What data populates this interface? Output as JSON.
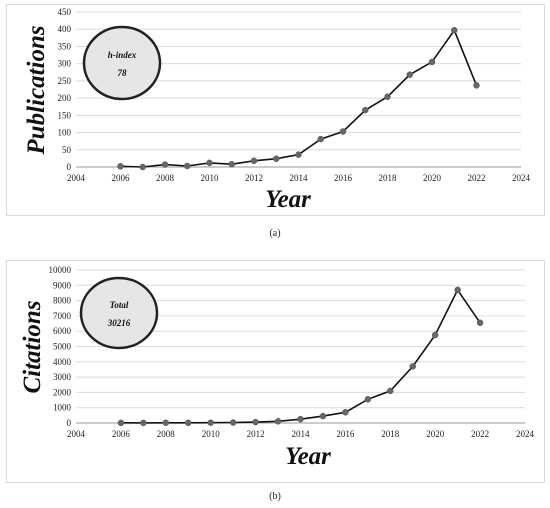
{
  "chart_data": [
    {
      "type": "line",
      "panel": "a",
      "caption": "(a)",
      "xlabel": "Year",
      "ylabel": "Publications",
      "xlim": [
        2004,
        2024
      ],
      "ylim": [
        0,
        450
      ],
      "xticks": [
        2004,
        2006,
        2008,
        2010,
        2012,
        2014,
        2016,
        2018,
        2020,
        2022,
        2024
      ],
      "yticks": [
        0,
        50,
        100,
        150,
        200,
        250,
        300,
        350,
        400,
        450
      ],
      "grid": "horizontal",
      "annotation": {
        "line1": "h-index",
        "line2": "78"
      },
      "x": [
        2006,
        2007,
        2008,
        2009,
        2010,
        2011,
        2012,
        2013,
        2014,
        2015,
        2016,
        2017,
        2018,
        2019,
        2020,
        2021,
        2022
      ],
      "y": [
        2,
        0,
        7,
        3,
        12,
        8,
        18,
        24,
        36,
        81,
        103,
        165,
        204,
        268,
        305,
        397,
        237
      ]
    },
    {
      "type": "line",
      "panel": "b",
      "caption": "(b)",
      "xlabel": "Year",
      "ylabel": "Citations",
      "xlim": [
        2004,
        2024
      ],
      "ylim": [
        0,
        10000
      ],
      "xticks": [
        2004,
        2006,
        2008,
        2010,
        2012,
        2014,
        2016,
        2018,
        2020,
        2022,
        2024
      ],
      "yticks": [
        0,
        1000,
        2000,
        3000,
        4000,
        5000,
        6000,
        7000,
        8000,
        9000,
        10000
      ],
      "grid": "horizontal",
      "annotation": {
        "line1": "Total",
        "line2": "30216"
      },
      "x": [
        2006,
        2007,
        2008,
        2009,
        2010,
        2011,
        2012,
        2013,
        2014,
        2015,
        2016,
        2017,
        2018,
        2019,
        2020,
        2021,
        2022
      ],
      "y": [
        10,
        5,
        15,
        12,
        20,
        30,
        60,
        110,
        250,
        450,
        700,
        1550,
        2100,
        3700,
        5750,
        8700,
        6550
      ]
    }
  ]
}
